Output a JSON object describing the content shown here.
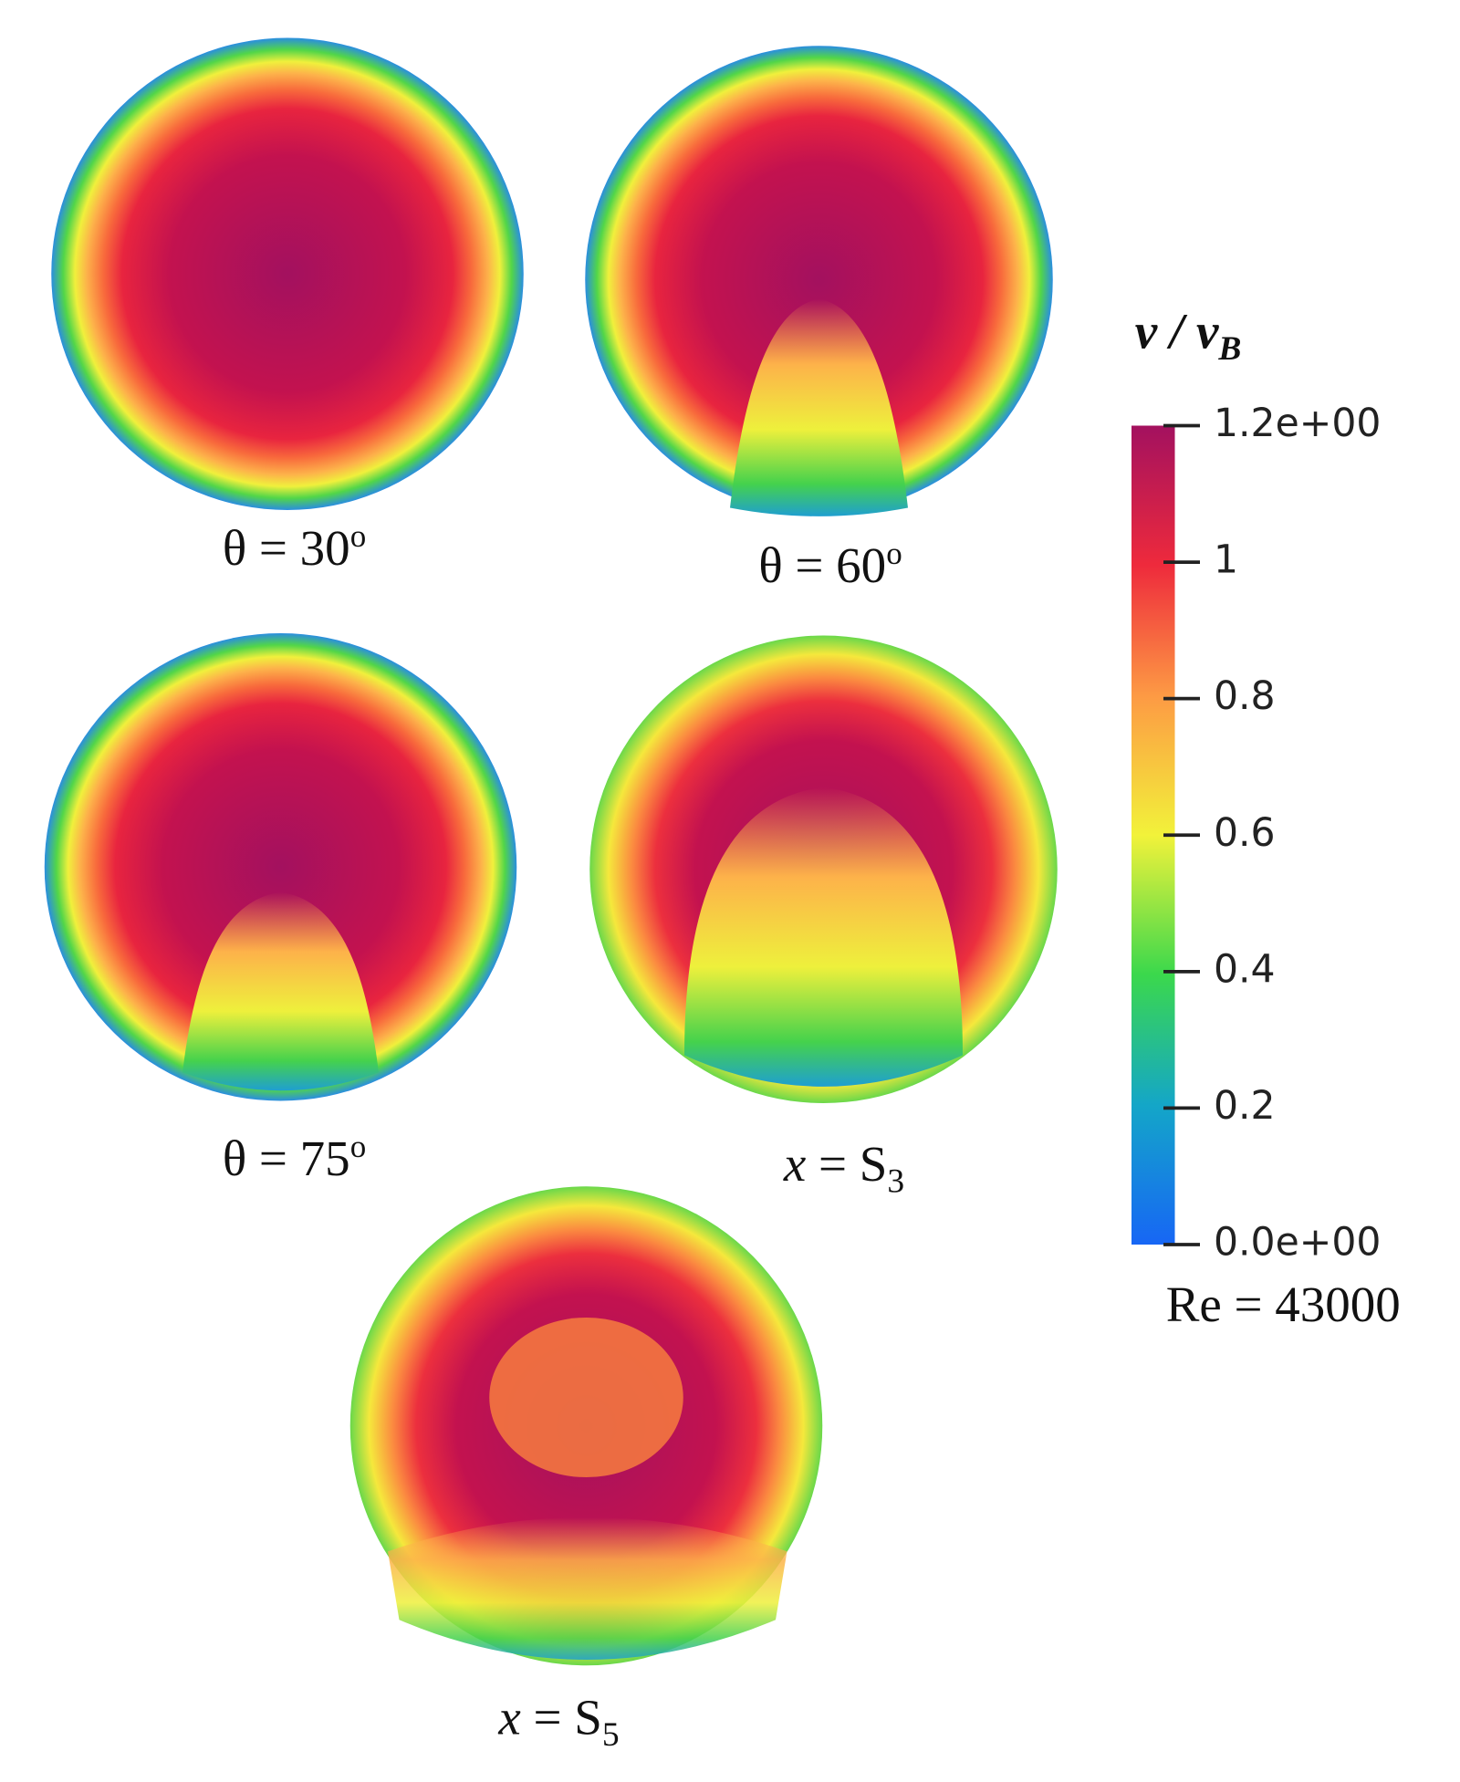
{
  "panels": [
    {
      "label": "θ = 30",
      "superscript": "o"
    },
    {
      "label": "θ = 60",
      "superscript": "o"
    },
    {
      "label": "θ = 75",
      "superscript": "o"
    },
    {
      "variable": "x",
      "label": " = S",
      "subscript": "3"
    },
    {
      "variable": "x",
      "label": " = S",
      "subscript": "5"
    }
  ],
  "colorbar": {
    "title": "v / v",
    "title_subscript": "B",
    "range": [
      0,
      1.2
    ],
    "ticks": [
      {
        "value": 1.2,
        "label": "1.2e+00"
      },
      1,
      0.8,
      0.6,
      0.4,
      0.2,
      {
        "value": 0,
        "label": "0.0e+00"
      }
    ]
  },
  "reynolds": "Re = 43000"
}
